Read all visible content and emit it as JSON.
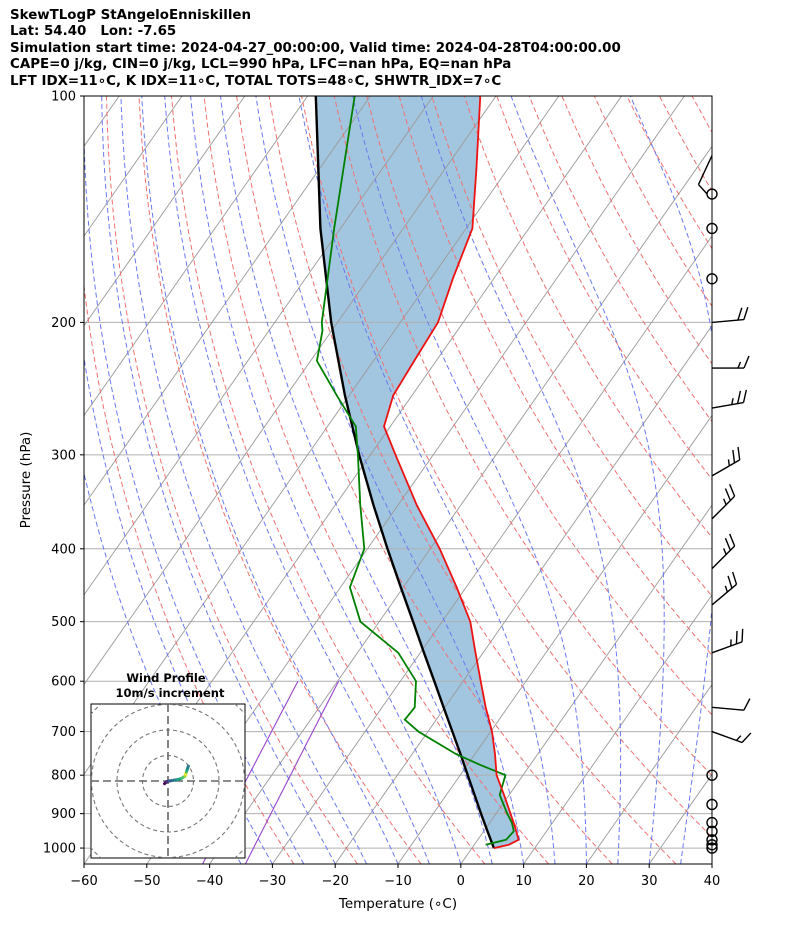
{
  "header": {
    "title": "SkewTLogP StAngeloEnniskillen",
    "location": "Lat: 54.40   Lon: -7.65",
    "times": "Simulation start time: 2024-04-27_00:00:00, Valid time: 2024-04-28T04:00:00.00",
    "params": "CAPE=0 j/kg, CIN=0 j/kg, LCL=990 hPa, LFC=nan hPa, EQ=nan hPa",
    "indices": "LFT IDX=11∘C, K IDX=11∘C, TOTAL TOTS=48∘C, SHWTR_IDX=7∘C"
  },
  "chart_data": {
    "type": "skewt",
    "xlabel": "Temperature (∘C)",
    "ylabel": "Pressure (hPa)",
    "xlim": [
      -60,
      40
    ],
    "ylim": [
      1050,
      100
    ],
    "x_ticks": [
      "−60",
      "−50",
      "−40",
      "−30",
      "−20",
      "−10",
      "0",
      "10",
      "20",
      "30",
      "40"
    ],
    "y_ticks": [
      {
        "p": 100,
        "label": "100"
      },
      {
        "p": 200,
        "label": "200"
      },
      {
        "p": 300,
        "label": "300"
      },
      {
        "p": 400,
        "label": "400"
      },
      {
        "p": 500,
        "label": "500"
      },
      {
        "p": 600,
        "label": "600"
      },
      {
        "p": 700,
        "label": "700"
      },
      {
        "p": 800,
        "label": "800"
      },
      {
        "p": 900,
        "label": "900"
      },
      {
        "p": 1000,
        "label": "1000"
      }
    ],
    "colors": {
      "temperature": "#ee1111",
      "dewpoint": "#008000",
      "parcel": "#000000",
      "cape_fill": "#a3c6e0",
      "dry_adiabat": "#f07070",
      "moist_adiabat": "#6a78f0",
      "isotherm": "#999999",
      "mixing_ratio": "#9944cc"
    },
    "temperature": {
      "p": [
        1000,
        990,
        975,
        950,
        925,
        900,
        850,
        800,
        750,
        700,
        650,
        600,
        550,
        500,
        450,
        400,
        350,
        300,
        275,
        250,
        225,
        200,
        175,
        150,
        125,
        100
      ],
      "t": [
        3.5,
        5.5,
        6.5,
        5.2,
        3.8,
        2.3,
        -0.8,
        -4.2,
        -6.8,
        -9.8,
        -13.5,
        -17.2,
        -21.2,
        -25.5,
        -31.5,
        -38.5,
        -47.0,
        -56.0,
        -61.0,
        -63.0,
        -63.5,
        -64.0,
        -66.5,
        -69.0,
        -75.0,
        -82.5
      ]
    },
    "dewpoint": {
      "p": [
        990,
        975,
        950,
        925,
        900,
        850,
        800,
        775,
        750,
        700,
        675,
        650,
        600,
        550,
        500,
        450,
        400,
        350,
        300,
        275,
        250,
        225,
        205,
        200,
        150,
        100
      ],
      "td": [
        1.8,
        4.5,
        4.8,
        3.5,
        1.8,
        -1.5,
        -2.8,
        -8.0,
        -13.0,
        -21.5,
        -25.0,
        -24.8,
        -27.5,
        -33.5,
        -43.0,
        -48.5,
        -50.5,
        -56.0,
        -62.0,
        -65.5,
        -72.0,
        -79.0,
        -81.5,
        -82.5,
        -91.0,
        -102.5
      ]
    },
    "parcel_profile": {
      "p": [
        1000,
        950,
        900,
        850,
        800,
        750,
        700,
        650,
        600,
        550,
        500,
        450,
        400,
        350,
        300,
        250,
        200,
        150,
        100
      ],
      "t": [
        3.5,
        0.6,
        -2.4,
        -5.5,
        -8.8,
        -12.3,
        -16.1,
        -20.2,
        -24.6,
        -29.4,
        -34.6,
        -40.4,
        -46.8,
        -53.9,
        -61.8,
        -70.7,
        -81.0,
        -93.2,
        -108.7
      ]
    },
    "wind_barbs": [
      {
        "p": 1000,
        "type": "calm"
      },
      {
        "p": 990,
        "type": "calm"
      },
      {
        "p": 975,
        "type": "calm"
      },
      {
        "p": 950,
        "type": "calm"
      },
      {
        "p": 925,
        "type": "calm"
      },
      {
        "p": 875,
        "type": "calm"
      },
      {
        "p": 800,
        "type": "calm"
      },
      {
        "p": 700,
        "type": "barb",
        "spd": 15,
        "dir": 290
      },
      {
        "p": 650,
        "type": "barb",
        "spd": 10,
        "dir": 275
      },
      {
        "p": 550,
        "type": "barb",
        "spd": 25,
        "dir": 250
      },
      {
        "p": 475,
        "type": "barb",
        "spd": 25,
        "dir": 230
      },
      {
        "p": 425,
        "type": "barb",
        "spd": 25,
        "dir": 225
      },
      {
        "p": 365,
        "type": "barb",
        "spd": 25,
        "dir": 225
      },
      {
        "p": 320,
        "type": "barb",
        "spd": 25,
        "dir": 240
      },
      {
        "p": 260,
        "type": "barb",
        "spd": 25,
        "dir": 260
      },
      {
        "p": 230,
        "type": "barb",
        "spd": 15,
        "dir": 270
      },
      {
        "p": 200,
        "type": "barb",
        "spd": 20,
        "dir": 265
      },
      {
        "p": 175,
        "type": "calm"
      },
      {
        "p": 150,
        "type": "calm"
      },
      {
        "p": 135,
        "type": "calm"
      },
      {
        "p": 120,
        "type": "barb",
        "spd": 10,
        "dir": 25
      }
    ],
    "hodograph": {
      "title": "Wind Profile",
      "subtitle": "10m/s increment",
      "u": [
        -0.5,
        -0.2,
        0.2,
        0.8,
        1.4,
        2.0,
        2.5,
        2.6,
        2.7,
        2.8,
        2.9,
        3.0
      ],
      "v": [
        -0.4,
        -0.1,
        0.0,
        0.1,
        0.2,
        0.4,
        0.7,
        1.0,
        1.3,
        1.6,
        1.9,
        2.2
      ]
    }
  }
}
